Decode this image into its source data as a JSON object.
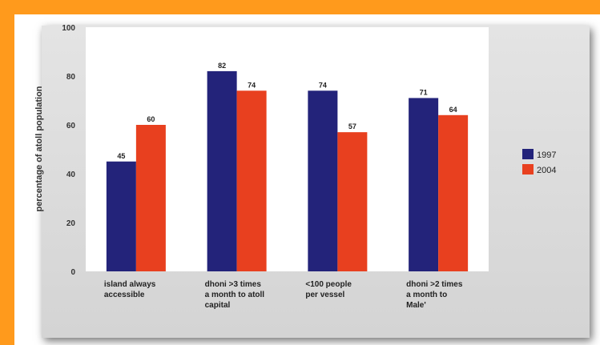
{
  "colors": {
    "page_background": "#ff9a1c",
    "panel_background": "#d9d9d9",
    "plot_background": "#ffffff",
    "series_1997": "#23237a",
    "series_2004": "#e8401f"
  },
  "chart_data": {
    "type": "bar",
    "title": "",
    "ylabel": "percentage of atoll population",
    "xlabel": "",
    "ylim": [
      0,
      100
    ],
    "yticks": [
      0,
      20,
      40,
      60,
      80,
      100
    ],
    "grid": false,
    "legend_placement": "right",
    "categories": [
      [
        "island always",
        "accessible"
      ],
      [
        "dhoni >3 times",
        "a month to atoll",
        "capital"
      ],
      [
        "<100 people",
        "per vessel"
      ],
      [
        "dhoni >2 times",
        "a month to",
        "Male'"
      ]
    ],
    "series": [
      {
        "name": "1997",
        "color": "#23237a",
        "values": [
          45,
          82,
          74,
          71
        ]
      },
      {
        "name": "2004",
        "color": "#e8401f",
        "values": [
          60,
          74,
          57,
          64
        ]
      }
    ]
  }
}
